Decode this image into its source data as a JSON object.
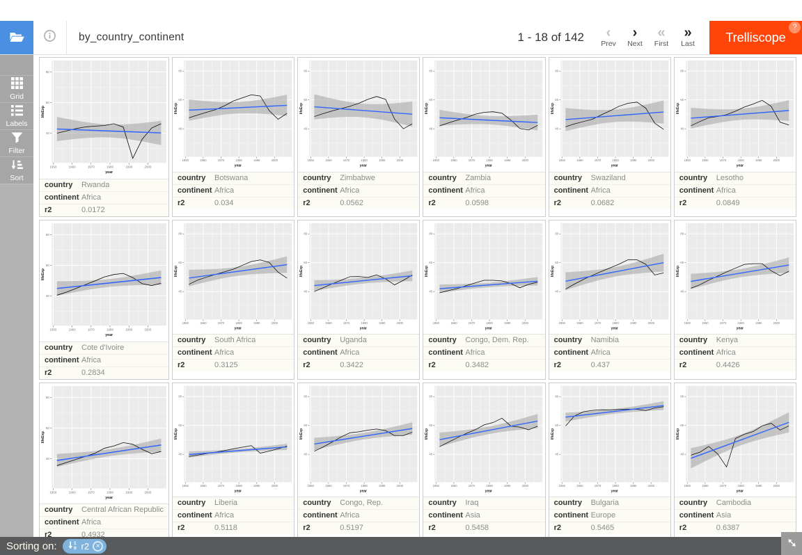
{
  "colors": {
    "accent_blue": "#4a90e2",
    "brand_orange": "#ff4508",
    "trend_blue": "#3366ff",
    "panel_bg": "#ebebeb",
    "band_gray": "#9c9c9c",
    "footer_bg": "#58595b",
    "pill_blue": "#7fb3de",
    "sidebar_gray": "#a6a6a6"
  },
  "header": {
    "title": "by_country_continent",
    "pagination": "1 - 18 of 142",
    "nav": [
      {
        "label": "Prev",
        "glyph": "‹",
        "enabled": false
      },
      {
        "label": "Next",
        "glyph": "›",
        "enabled": true
      },
      {
        "label": "First",
        "glyph": "«",
        "enabled": false
      },
      {
        "label": "Last",
        "glyph": "»",
        "enabled": true
      }
    ],
    "brand": "Trelliscope",
    "help_badge": "?"
  },
  "sidebar": {
    "items": [
      {
        "label": "Grid",
        "icon": "grid-icon"
      },
      {
        "label": "Labels",
        "icon": "labels-icon"
      },
      {
        "label": "Filter",
        "icon": "filter-icon"
      },
      {
        "label": "Sort",
        "icon": "sort-icon"
      }
    ]
  },
  "footer": {
    "sorting_label": "Sorting on:",
    "sort_pill": "r2",
    "sort_pill_icon": "sort-numeric-asc-icon",
    "remove_icon": "×",
    "fullscreen_icon": "expand-arrows-icon"
  },
  "panel_labels": [
    "country",
    "continent",
    "r2"
  ],
  "chart_data": {
    "type": "line",
    "xlabel": "year",
    "ylabel": "lifeExp",
    "x": [
      1952,
      1957,
      1962,
      1967,
      1972,
      1977,
      1982,
      1987,
      1992,
      1997,
      2002,
      2007
    ],
    "x_domain": [
      1949.25,
      2009.75
    ],
    "y_domain": [
      20.6,
      87.4
    ],
    "x_major": [
      1950,
      1960,
      1970,
      1980,
      1990,
      2000
    ],
    "x_minor": [
      1955,
      1965,
      1975,
      1985,
      1995,
      2005
    ],
    "y_major": [
      40,
      60,
      80
    ],
    "y_minor": [
      30,
      50,
      70
    ],
    "smooth": "lm with 95% confidence band",
    "panels": [
      {
        "country": "Rwanda",
        "continent": "Africa",
        "r2": "0.0172",
        "lifeExp": [
          40.0,
          41.5,
          43.0,
          44.1,
          44.6,
          45.0,
          46.2,
          44.0,
          23.6,
          36.1,
          43.4,
          46.2
        ]
      },
      {
        "country": "Botswana",
        "continent": "Africa",
        "r2": "0.034",
        "lifeExp": [
          47.6,
          49.6,
          51.5,
          53.3,
          56.0,
          59.3,
          61.5,
          63.6,
          62.7,
          52.6,
          46.6,
          50.7
        ]
      },
      {
        "country": "Zimbabwe",
        "continent": "Africa",
        "r2": "0.0562",
        "lifeExp": [
          48.5,
          50.5,
          52.4,
          54.0,
          55.6,
          57.7,
          60.4,
          62.4,
          60.4,
          46.8,
          40.0,
          43.5
        ]
      },
      {
        "country": "Zambia",
        "continent": "Africa",
        "r2": "0.0598",
        "lifeExp": [
          42.0,
          44.1,
          46.0,
          47.8,
          50.1,
          51.4,
          51.8,
          50.8,
          46.1,
          40.2,
          39.2,
          42.4
        ]
      },
      {
        "country": "Swaziland",
        "continent": "Africa",
        "r2": "0.0682",
        "lifeExp": [
          41.4,
          43.4,
          45.0,
          46.6,
          49.6,
          52.5,
          55.6,
          57.7,
          58.5,
          54.3,
          43.9,
          39.6
        ]
      },
      {
        "country": "Lesotho",
        "continent": "Africa",
        "r2": "0.0849",
        "lifeExp": [
          42.1,
          45.0,
          47.7,
          48.5,
          49.8,
          52.2,
          55.1,
          57.2,
          59.7,
          55.6,
          44.6,
          42.6
        ]
      },
      {
        "country": "Cote d'Ivoire",
        "continent": "Africa",
        "r2": "0.2834",
        "lifeExp": [
          40.5,
          42.5,
          44.9,
          47.4,
          49.8,
          52.4,
          54.0,
          54.7,
          52.0,
          48.0,
          46.8,
          48.3
        ]
      },
      {
        "country": "South Africa",
        "continent": "Africa",
        "r2": "0.3125",
        "lifeExp": [
          45.0,
          48.0,
          50.0,
          51.9,
          53.7,
          55.5,
          58.2,
          60.8,
          61.9,
          60.2,
          53.4,
          49.3
        ]
      },
      {
        "country": "Uganda",
        "continent": "Africa",
        "r2": "0.3422",
        "lifeExp": [
          40.0,
          42.6,
          45.3,
          47.8,
          50.3,
          50.4,
          49.8,
          51.5,
          48.8,
          44.6,
          47.8,
          51.5
        ]
      },
      {
        "country": "Congo, Dem. Rep.",
        "continent": "Africa",
        "r2": "0.3482",
        "lifeExp": [
          39.1,
          40.7,
          42.1,
          44.1,
          46.0,
          47.8,
          47.8,
          47.4,
          45.5,
          42.6,
          45.0,
          46.5
        ]
      },
      {
        "country": "Namibia",
        "continent": "Africa",
        "r2": "0.437",
        "lifeExp": [
          41.7,
          45.2,
          48.4,
          51.2,
          53.9,
          56.4,
          59.0,
          62.0,
          62.0,
          58.9,
          51.5,
          52.9
        ]
      },
      {
        "country": "Kenya",
        "continent": "Africa",
        "r2": "0.4426",
        "lifeExp": [
          42.3,
          44.7,
          47.9,
          50.7,
          53.6,
          56.2,
          58.8,
          59.3,
          59.3,
          54.4,
          51.0,
          54.1
        ]
      },
      {
        "country": "Central African Republic",
        "continent": "Africa",
        "r2": "0.4932",
        "lifeExp": [
          35.5,
          37.5,
          39.5,
          41.5,
          43.5,
          46.8,
          48.3,
          50.5,
          49.4,
          46.1,
          43.3,
          44.7
        ]
      },
      {
        "country": "Liberia",
        "continent": "Africa",
        "r2": "0.5118",
        "lifeExp": [
          38.5,
          39.5,
          40.5,
          41.5,
          42.6,
          43.8,
          44.9,
          46.0,
          40.8,
          42.2,
          43.8,
          45.7
        ]
      },
      {
        "country": "Congo, Rep.",
        "continent": "Africa",
        "r2": "0.5197",
        "lifeExp": [
          42.1,
          45.1,
          48.4,
          52.0,
          54.9,
          55.6,
          56.7,
          57.5,
          56.4,
          53.0,
          53.0,
          55.3
        ]
      },
      {
        "country": "Iraq",
        "continent": "Asia",
        "r2": "0.5458",
        "lifeExp": [
          45.3,
          48.4,
          51.5,
          54.5,
          57.0,
          60.4,
          62.0,
          65.0,
          59.5,
          58.8,
          57.0,
          59.5
        ]
      },
      {
        "country": "Bulgaria",
        "continent": "Europe",
        "r2": "0.5465",
        "lifeExp": [
          59.6,
          66.6,
          69.5,
          70.4,
          70.9,
          70.8,
          71.1,
          71.3,
          71.2,
          70.3,
          72.1,
          73.0
        ]
      },
      {
        "country": "Cambodia",
        "continent": "Asia",
        "r2": "0.6387",
        "lifeExp": [
          39.4,
          41.4,
          45.4,
          40.3,
          31.2,
          51.0,
          53.9,
          55.8,
          59.7,
          61.5,
          56.8,
          59.7
        ]
      }
    ]
  }
}
